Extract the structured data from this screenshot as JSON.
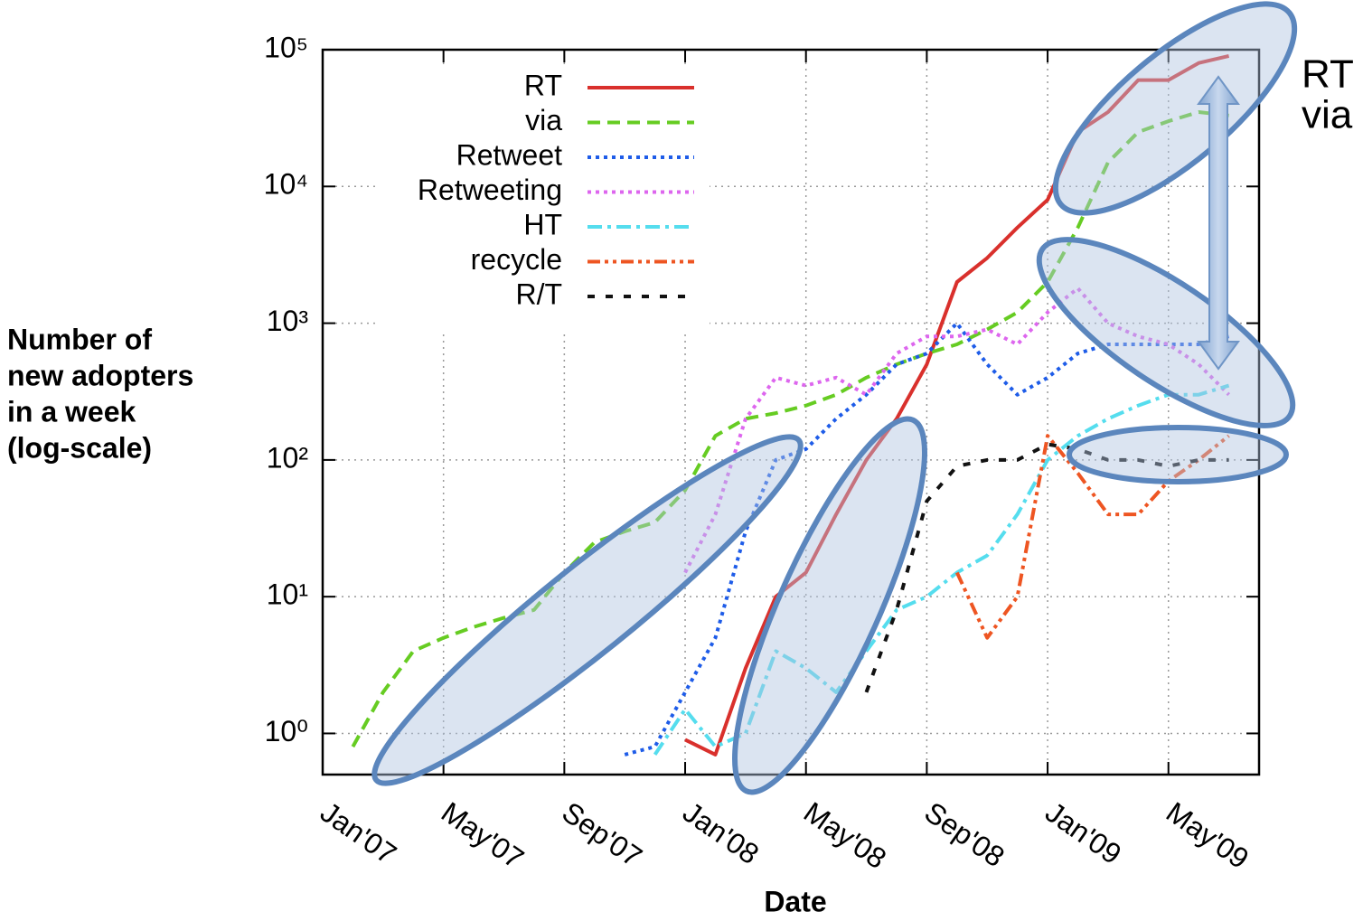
{
  "chart_data": {
    "type": "line",
    "xlabel": "Date",
    "ylabel": [
      "Number of",
      "new adopters",
      "in a week",
      "(log-scale)"
    ],
    "annotations": [
      "RT",
      "via"
    ],
    "x": [
      "2007-01",
      "2007-02",
      "2007-03",
      "2007-04",
      "2007-05",
      "2007-06",
      "2007-07",
      "2007-08",
      "2007-09",
      "2007-10",
      "2007-11",
      "2007-12",
      "2008-01",
      "2008-02",
      "2008-03",
      "2008-04",
      "2008-05",
      "2008-06",
      "2008-07",
      "2008-08",
      "2008-09",
      "2008-10",
      "2008-11",
      "2008-12",
      "2009-01",
      "2009-02",
      "2009-03",
      "2009-04",
      "2009-05",
      "2009-06",
      "2009-07"
    ],
    "xlim": [
      "2007-01",
      "2009-08"
    ],
    "xticks": [
      {
        "value": "2007-01",
        "label": "Jan'07"
      },
      {
        "value": "2007-05",
        "label": "May'07"
      },
      {
        "value": "2007-09",
        "label": "Sep'07"
      },
      {
        "value": "2008-01",
        "label": "Jan'08"
      },
      {
        "value": "2008-05",
        "label": "May'08"
      },
      {
        "value": "2008-09",
        "label": "Sep'08"
      },
      {
        "value": "2009-01",
        "label": "Jan'09"
      },
      {
        "value": "2009-05",
        "label": "May'09"
      }
    ],
    "ylim": [
      0.5,
      100000
    ],
    "yticks": [
      {
        "value": 1,
        "label": "10⁰"
      },
      {
        "value": 10,
        "label": "10¹"
      },
      {
        "value": 100,
        "label": "10²"
      },
      {
        "value": 1000,
        "label": "10³"
      },
      {
        "value": 10000,
        "label": "10⁴"
      },
      {
        "value": 100000,
        "label": "10⁵"
      }
    ],
    "log_scale": true,
    "grid": true,
    "legend": "upper left",
    "series": [
      {
        "name": "RT",
        "color": "#d9302c",
        "dash": "solid",
        "values": [
          null,
          null,
          null,
          null,
          null,
          null,
          null,
          null,
          null,
          null,
          null,
          null,
          0.9,
          0.7,
          3,
          10,
          15,
          40,
          100,
          200,
          500,
          2000,
          3000,
          5000,
          8000,
          25000,
          35000,
          60000,
          60000,
          80000,
          90000
        ]
      },
      {
        "name": "via",
        "color": "#66cc22",
        "dash": "dashed",
        "values": [
          null,
          0.8,
          2,
          4,
          5,
          6,
          7,
          8,
          15,
          25,
          30,
          35,
          60,
          150,
          200,
          220,
          250,
          300,
          400,
          500,
          600,
          700,
          900,
          1200,
          2000,
          5000,
          15000,
          25000,
          30000,
          35000,
          33000
        ]
      },
      {
        "name": "Retweet",
        "color": "#1e5ce8",
        "dash": "dotted",
        "values": [
          null,
          null,
          null,
          null,
          null,
          null,
          null,
          null,
          null,
          null,
          0.7,
          0.8,
          2,
          5,
          30,
          100,
          120,
          200,
          300,
          500,
          600,
          1000,
          500,
          300,
          400,
          600,
          700,
          700,
          700,
          700,
          800
        ]
      },
      {
        "name": "Retweeting",
        "color": "#dd66ee",
        "dash": "dotted",
        "values": [
          null,
          null,
          null,
          null,
          null,
          null,
          null,
          null,
          null,
          null,
          null,
          null,
          15,
          40,
          200,
          400,
          350,
          400,
          300,
          600,
          800,
          800,
          900,
          700,
          1200,
          1800,
          1000,
          800,
          700,
          500,
          300
        ]
      },
      {
        "name": "HT",
        "color": "#55ddee",
        "dash": "dashdot",
        "values": [
          null,
          null,
          null,
          null,
          null,
          null,
          null,
          null,
          null,
          null,
          null,
          0.7,
          1.5,
          0.8,
          1,
          4,
          3,
          2,
          4,
          8,
          10,
          15,
          20,
          40,
          100,
          150,
          200,
          250,
          300,
          300,
          350
        ]
      },
      {
        "name": "recycle",
        "color": "#ee5522",
        "dash": "dashdotdot",
        "values": [
          null,
          null,
          null,
          null,
          null,
          null,
          null,
          null,
          null,
          null,
          null,
          null,
          null,
          null,
          null,
          null,
          null,
          null,
          null,
          null,
          null,
          15,
          5,
          10,
          150,
          80,
          40,
          40,
          70,
          100,
          150
        ]
      },
      {
        "name": "R/T",
        "color": "#111111",
        "dash": "loosedash",
        "values": [
          null,
          null,
          null,
          null,
          null,
          null,
          null,
          null,
          null,
          null,
          null,
          null,
          null,
          null,
          null,
          null,
          null,
          null,
          2,
          8,
          50,
          90,
          100,
          100,
          130,
          120,
          100,
          100,
          90,
          100,
          100
        ]
      }
    ]
  }
}
